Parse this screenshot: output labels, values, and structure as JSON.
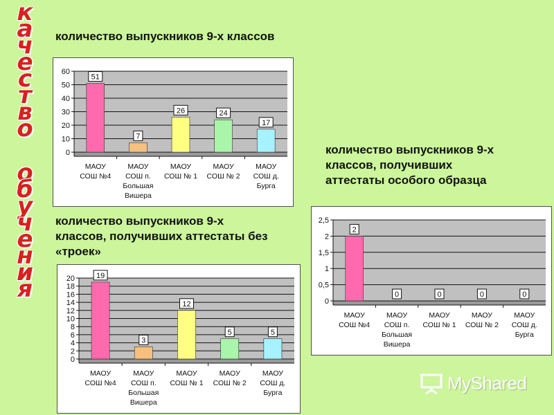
{
  "side_title": {
    "word1": [
      "к",
      "а",
      "ч",
      "е",
      "с",
      "т",
      "в",
      "о"
    ],
    "word2": [
      "о",
      "б",
      "у",
      "ч",
      "е",
      "н",
      "и",
      "я"
    ],
    "color": "#d92020"
  },
  "captions": {
    "chart1": "количество выпускников 9-х классов",
    "chart2": [
      "количество выпускников 9-х",
      "классов, получивших",
      "аттестаты  особого образца"
    ],
    "chart3": [
      "количество выпускников 9-х",
      "классов, получивших аттестаты без",
      "«троек»"
    ]
  },
  "chart_data": [
    {
      "type": "bar",
      "categories": [
        [
          "МАОУ",
          "СОШ №4"
        ],
        [
          "МАОУ",
          "СОШ п.",
          "Большая",
          "Вишера"
        ],
        [
          "МАОУ",
          "СОШ № 1"
        ],
        [
          "МАОУ",
          "СОШ № 2"
        ],
        [
          "МАОУ",
          "СОШ д.",
          "Бурга"
        ]
      ],
      "values": [
        51,
        7,
        26,
        24,
        17
      ],
      "colors": [
        "#ff69ad",
        "#f7c07d",
        "#ffff80",
        "#a9f5a9",
        "#a6f2ff"
      ],
      "ylim": [
        0,
        60
      ],
      "yticks": [
        0,
        10,
        20,
        30,
        40,
        50,
        60
      ],
      "grid": true,
      "legend": "none"
    },
    {
      "type": "bar",
      "categories": [
        [
          "МАОУ",
          "СОШ №4"
        ],
        [
          "МАОУ",
          "СОШ п.",
          "Большая",
          "Вишера"
        ],
        [
          "МАОУ",
          "СОШ № 1"
        ],
        [
          "МАОУ",
          "СОШ № 2"
        ],
        [
          "МАОУ",
          "СОШ д.",
          "Бурга"
        ]
      ],
      "values": [
        2,
        0,
        0,
        0,
        0
      ],
      "colors": [
        "#ff69ad",
        "#f7c07d",
        "#ffff80",
        "#a9f5a9",
        "#a6f2ff"
      ],
      "ylim": [
        0,
        2.5
      ],
      "yticks": [
        "0",
        "0,5",
        "1",
        "1,5",
        "2",
        "2,5"
      ],
      "grid": true,
      "legend": "none"
    },
    {
      "type": "bar",
      "categories": [
        [
          "МАОУ",
          "СОШ №4"
        ],
        [
          "МАОУ",
          "СОШ п.",
          "Большая",
          "Вишера"
        ],
        [
          "МАОУ",
          "СОШ № 1"
        ],
        [
          "МАОУ",
          "СОШ № 2"
        ],
        [
          "МАОУ",
          "СОШ д.",
          "Бурга"
        ]
      ],
      "values": [
        19,
        3,
        12,
        5,
        5
      ],
      "colors": [
        "#ff69ad",
        "#f7c07d",
        "#ffff80",
        "#a9f5a9",
        "#a6f2ff"
      ],
      "ylim": [
        0,
        20
      ],
      "yticks": [
        0,
        2,
        4,
        6,
        8,
        10,
        12,
        14,
        16,
        18,
        20
      ],
      "grid": true,
      "legend": "none"
    }
  ],
  "watermark": {
    "text": "MyShared",
    "icon": "projector-screen-icon"
  }
}
